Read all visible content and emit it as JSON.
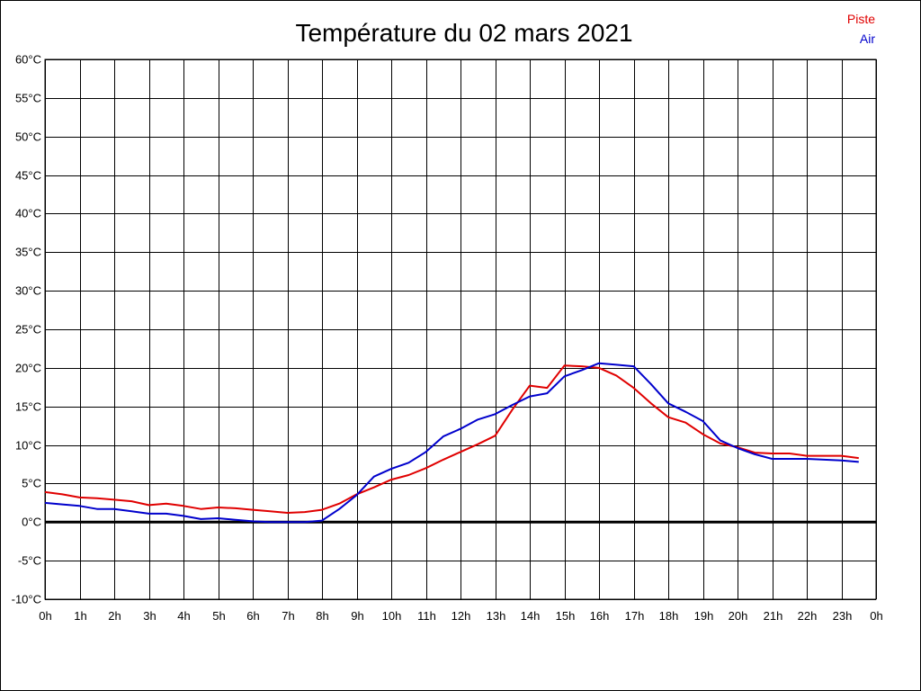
{
  "chart_data": {
    "type": "line",
    "title": "Température du 02 mars 2021",
    "y_tick_labels": [
      "60°C",
      "55°C",
      "50°C",
      "45°C",
      "40°C",
      "35°C",
      "30°C",
      "25°C",
      "20°C",
      "15°C",
      "10°C",
      "5°C",
      "0°C",
      "-5°C",
      "-10°C"
    ],
    "x_tick_labels": [
      "0h",
      "1h",
      "2h",
      "3h",
      "4h",
      "5h",
      "6h",
      "7h",
      "8h",
      "9h",
      "10h",
      "11h",
      "12h",
      "13h",
      "14h",
      "15h",
      "16h",
      "17h",
      "18h",
      "19h",
      "20h",
      "21h",
      "22h",
      "23h",
      "0h"
    ],
    "xlim": [
      0,
      24
    ],
    "ylim": [
      -10,
      60
    ],
    "grid": true,
    "legend_position": "top-right",
    "zero_line": true,
    "series": [
      {
        "name": "Piste",
        "color": "#e00000",
        "x": [
          0,
          0.5,
          1,
          1.5,
          2,
          2.5,
          3,
          3.5,
          4,
          4.5,
          5,
          5.5,
          6,
          6.5,
          7,
          7.5,
          8,
          8.5,
          9,
          9.5,
          10,
          10.5,
          11,
          11.5,
          12,
          12.5,
          13,
          13.5,
          14,
          14.5,
          15,
          15.5,
          16,
          16.5,
          17,
          17.5,
          18,
          18.5,
          19,
          19.5,
          20,
          20.5,
          21,
          21.5,
          22,
          22.5,
          23,
          23.5
        ],
        "values": [
          3.9,
          3.6,
          3.2,
          3.1,
          2.9,
          2.7,
          2.2,
          2.4,
          2.1,
          1.7,
          1.9,
          1.8,
          1.6,
          1.4,
          1.2,
          1.3,
          1.6,
          2.4,
          3.6,
          4.5,
          5.5,
          6.1,
          7.0,
          8.1,
          9.1,
          10.1,
          11.2,
          14.6,
          17.7,
          17.4,
          20.3,
          20.2,
          20.0,
          19.0,
          17.4,
          15.4,
          13.6,
          12.9,
          11.4,
          10.2,
          9.7,
          9.0,
          8.9,
          8.9,
          8.6,
          8.6,
          8.6,
          8.3
        ]
      },
      {
        "name": "Air",
        "color": "#0000cc",
        "x": [
          0,
          0.5,
          1,
          1.5,
          2,
          2.5,
          3,
          3.5,
          4,
          4.5,
          5,
          5.5,
          6,
          6.5,
          7,
          7.5,
          8,
          8.5,
          9,
          9.5,
          10,
          10.5,
          11,
          11.5,
          12,
          12.5,
          13,
          13.5,
          14,
          14.5,
          15,
          15.5,
          16,
          16.5,
          17,
          17.5,
          18,
          18.5,
          19,
          19.5,
          20,
          20.5,
          21,
          21.5,
          22,
          22.5,
          23,
          23.5
        ],
        "values": [
          2.5,
          2.3,
          2.1,
          1.7,
          1.7,
          1.4,
          1.1,
          1.1,
          0.8,
          0.4,
          0.5,
          0.3,
          0.1,
          0.0,
          0.0,
          0.0,
          0.2,
          1.7,
          3.5,
          5.9,
          6.9,
          7.7,
          9.1,
          11.1,
          12.1,
          13.3,
          14.0,
          15.2,
          16.3,
          16.7,
          18.9,
          19.7,
          20.6,
          20.4,
          20.2,
          17.9,
          15.4,
          14.3,
          13.1,
          10.6,
          9.6,
          8.8,
          8.2,
          8.2,
          8.2,
          8.1,
          8.0,
          7.8
        ]
      }
    ]
  }
}
